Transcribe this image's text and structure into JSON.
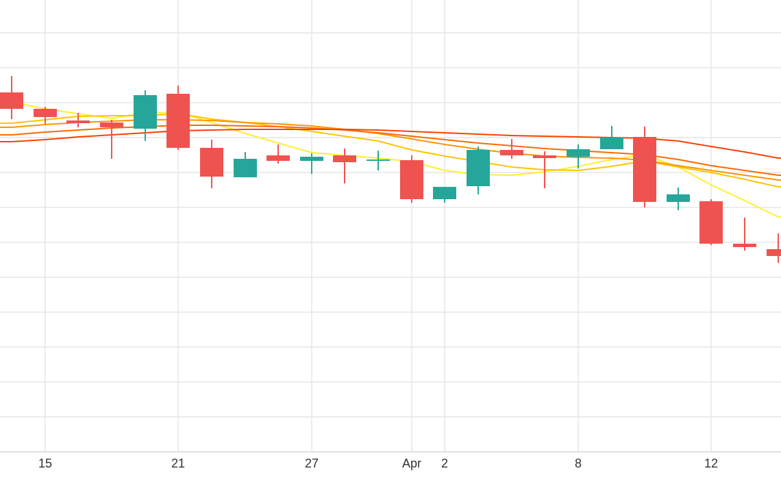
{
  "chart_data": {
    "type": "candlestick",
    "title": "",
    "xlabel": "",
    "ylabel": "",
    "grid": true,
    "x_ticks": [
      {
        "label": "15",
        "x": "Mar 15"
      },
      {
        "label": "21",
        "x": "Mar 21"
      },
      {
        "label": "27",
        "x": "Mar 27"
      },
      {
        "label": "Apr",
        "x": "Apr 1"
      },
      {
        "label": "2",
        "x": "Apr 2"
      },
      {
        "label": "8",
        "x": "Apr 8"
      },
      {
        "label": "12",
        "x": "Apr 12"
      }
    ],
    "candles": [
      {
        "date": "Mar 14",
        "open": 100.0,
        "high": 102.4,
        "low": 96.1,
        "close": 97.6
      },
      {
        "date": "Mar 15",
        "open": 97.6,
        "high": 97.9,
        "low": 95.4,
        "close": 96.4
      },
      {
        "date": "Mar 16",
        "open": 95.9,
        "high": 97.0,
        "low": 94.9,
        "close": 95.5
      },
      {
        "date": "Mar 18",
        "open": 95.6,
        "high": 96.0,
        "low": 90.3,
        "close": 94.9
      },
      {
        "date": "Mar 19",
        "open": 94.7,
        "high": 100.3,
        "low": 92.9,
        "close": 99.6
      },
      {
        "date": "Mar 21",
        "open": 99.8,
        "high": 101.0,
        "low": 91.6,
        "close": 91.9
      },
      {
        "date": "Mar 22",
        "open": 91.9,
        "high": 93.1,
        "low": 86.0,
        "close": 87.7
      },
      {
        "date": "Mar 23",
        "open": 87.6,
        "high": 91.3,
        "low": 87.6,
        "close": 90.3
      },
      {
        "date": "Mar 24",
        "open": 90.8,
        "high": 92.4,
        "low": 89.6,
        "close": 90.0
      },
      {
        "date": "Mar 27",
        "open": 90.0,
        "high": 91.1,
        "low": 88.1,
        "close": 90.6
      },
      {
        "date": "Mar 28",
        "open": 90.8,
        "high": 91.8,
        "low": 86.7,
        "close": 89.8
      },
      {
        "date": "Mar 29",
        "open": 90.1,
        "high": 91.5,
        "low": 88.6,
        "close": 90.2
      },
      {
        "date": "Apr 1",
        "open": 90.1,
        "high": 90.8,
        "low": 83.9,
        "close": 84.4
      },
      {
        "date": "Apr 2",
        "open": 84.4,
        "high": 86.2,
        "low": 83.9,
        "close": 86.2
      },
      {
        "date": "Apr 3",
        "open": 86.3,
        "high": 92.1,
        "low": 85.1,
        "close": 91.6
      },
      {
        "date": "Apr 4",
        "open": 91.6,
        "high": 93.2,
        "low": 90.3,
        "close": 90.8
      },
      {
        "date": "Apr 5",
        "open": 90.8,
        "high": 91.4,
        "low": 86.0,
        "close": 90.4
      },
      {
        "date": "Apr 8",
        "open": 90.6,
        "high": 92.4,
        "low": 88.9,
        "close": 91.7
      },
      {
        "date": "Apr 9",
        "open": 91.7,
        "high": 95.1,
        "low": 91.7,
        "close": 93.4
      },
      {
        "date": "Apr 10",
        "open": 93.5,
        "high": 95.0,
        "low": 83.2,
        "close": 84.0
      },
      {
        "date": "Apr 11",
        "open": 84.0,
        "high": 86.1,
        "low": 82.8,
        "close": 85.1
      },
      {
        "date": "Apr 12",
        "open": 84.1,
        "high": 84.4,
        "low": 77.7,
        "close": 77.9
      },
      {
        "date": "Apr 13",
        "open": 77.9,
        "high": 81.7,
        "low": 76.9,
        "close": 77.4
      },
      {
        "date": "Apr 14",
        "open": 77.1,
        "high": 79.4,
        "low": 75.1,
        "close": 76.1
      }
    ],
    "moving_averages": [
      {
        "color": "#ffee33",
        "values": [
          98.6,
          97.6,
          96.9,
          96.2,
          97.0,
          97.1,
          95.6,
          94.0,
          92.6,
          91.2,
          90.8,
          90.4,
          89.9,
          88.6,
          88.0,
          87.9,
          88.4,
          89.2,
          90.2,
          90.9,
          89.1,
          86.5,
          84.2,
          81.8
        ]
      },
      {
        "color": "#ffc300",
        "values": [
          95.5,
          96.0,
          96.5,
          96.6,
          96.6,
          96.9,
          96.1,
          95.6,
          95.0,
          94.3,
          93.6,
          92.9,
          91.6,
          90.7,
          89.9,
          89.1,
          88.7,
          88.6,
          89.2,
          90.0,
          89.1,
          88.3,
          87.3,
          86.2
        ]
      },
      {
        "color": "#ff9500",
        "values": [
          94.9,
          95.3,
          95.6,
          95.8,
          96.0,
          96.0,
          95.9,
          95.6,
          95.4,
          95.1,
          94.6,
          94.0,
          93.2,
          92.4,
          91.7,
          91.1,
          90.7,
          90.5,
          90.4,
          90.1,
          89.3,
          88.6,
          87.9,
          87.2
        ]
      },
      {
        "color": "#ff6a00",
        "values": [
          93.8,
          94.2,
          94.5,
          94.8,
          95.0,
          95.2,
          95.2,
          95.1,
          95.0,
          94.8,
          94.5,
          94.1,
          93.6,
          93.1,
          92.6,
          92.2,
          91.8,
          91.5,
          91.2,
          90.9,
          90.2,
          89.3,
          88.6,
          87.9
        ]
      },
      {
        "color": "#ff4000",
        "values": [
          92.8,
          93.1,
          93.5,
          93.8,
          94.1,
          94.4,
          94.5,
          94.6,
          94.6,
          94.6,
          94.6,
          94.5,
          94.3,
          94.1,
          93.9,
          93.7,
          93.6,
          93.5,
          93.4,
          93.3,
          92.9,
          92.1,
          91.3,
          90.4
        ]
      }
    ],
    "colors": {
      "up": "#26a69a",
      "down": "#ef5350",
      "grid": "#e6e6e6"
    }
  }
}
